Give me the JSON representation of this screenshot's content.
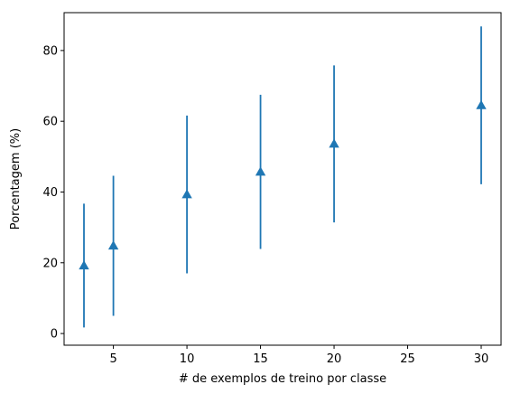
{
  "chart_data": {
    "type": "errorbar",
    "title": "",
    "xlabel": "# de exemplos de treino por classe",
    "ylabel": "Porcentagem (%)",
    "xlim": [
      1.65,
      31.35
    ],
    "ylim": [
      -3.3,
      90.7
    ],
    "xticks": [
      5,
      10,
      15,
      20,
      25,
      30
    ],
    "yticks": [
      0,
      20,
      40,
      60,
      80
    ],
    "grid": false,
    "legend": "none",
    "marker": "triangle-up",
    "color": "#1f77b4",
    "series": [
      {
        "x": [
          3,
          5,
          10,
          15,
          20,
          30
        ],
        "y": [
          19.2,
          24.8,
          39.3,
          45.7,
          53.6,
          64.5
        ],
        "yerr": [
          17.5,
          19.8,
          22.3,
          21.8,
          22.2,
          22.3
        ]
      }
    ]
  }
}
